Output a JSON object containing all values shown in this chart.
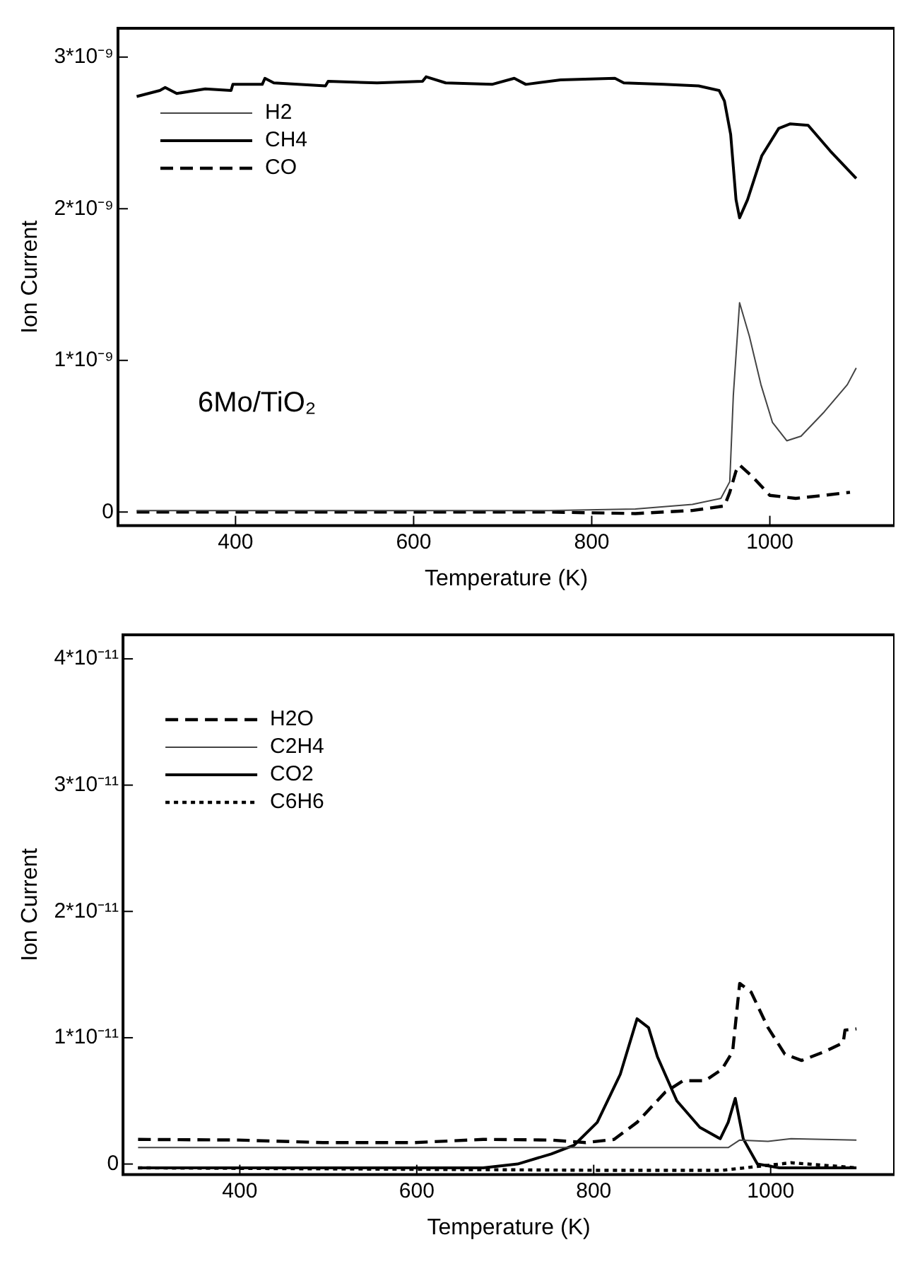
{
  "chart_data": [
    {
      "type": "line",
      "xlabel": "Temperature (K)",
      "ylabel": "Ion Current",
      "annotations": [
        "6Mo/TiO₂"
      ],
      "xlim": [
        268,
        1140
      ],
      "xticks": [
        400,
        600,
        800,
        1000
      ],
      "ylim": [
        -9e-11,
        3.19e-09
      ],
      "yticks": [
        {
          "value": 0,
          "label": "0"
        },
        {
          "value": 1e-09,
          "label": "1*10⁻⁹"
        },
        {
          "value": 2e-09,
          "label": "2*10⁻⁹"
        },
        {
          "value": 3e-09,
          "label": "3*10⁻⁹"
        }
      ],
      "grid": false,
      "legend": "top left",
      "marker": "none",
      "series": [
        {
          "name": "H2",
          "color": "#444444",
          "line_style": "solid",
          "x": [
            289,
            752,
            849,
            913,
            945,
            955,
            959,
            966,
            977,
            990,
            1003,
            1019,
            1035,
            1061,
            1087,
            1097
          ],
          "values": [
            1e-11,
            1e-11,
            2e-11,
            5e-11,
            9e-11,
            2e-10,
            7.7e-10,
            1.38e-09,
            1.16e-09,
            8.4e-10,
            5.9e-10,
            4.7e-10,
            5e-10,
            6.6e-10,
            8.4e-10,
            9.5e-10
          ]
        },
        {
          "name": "CH4",
          "color": "#000000",
          "line_style": "solid",
          "x": [
            289,
            315,
            321,
            334,
            366,
            395,
            397,
            430,
            433,
            443,
            501,
            504,
            559,
            610,
            614,
            636,
            688,
            713,
            726,
            765,
            826,
            836,
            881,
            920,
            943,
            949,
            956,
            962,
            966,
            975,
            991,
            1010,
            1023,
            1043,
            1068,
            1097
          ],
          "values": [
            2.74e-09,
            2.78e-09,
            2.8e-09,
            2.76e-09,
            2.79e-09,
            2.78e-09,
            2.82e-09,
            2.82e-09,
            2.86e-09,
            2.83e-09,
            2.81e-09,
            2.84e-09,
            2.83e-09,
            2.84e-09,
            2.87e-09,
            2.83e-09,
            2.82e-09,
            2.86e-09,
            2.82e-09,
            2.85e-09,
            2.86e-09,
            2.83e-09,
            2.82e-09,
            2.81e-09,
            2.78e-09,
            2.71e-09,
            2.49e-09,
            2.06e-09,
            1.94e-09,
            2.06e-09,
            2.35e-09,
            2.53e-09,
            2.56e-09,
            2.55e-09,
            2.38e-09,
            2.2e-09
          ]
        },
        {
          "name": "CO",
          "color": "#000000",
          "line_style": "dashed",
          "x": [
            289,
            752,
            849,
            913,
            949,
            955,
            962,
            966,
            981,
            1000,
            1029,
            1061,
            1090
          ],
          "values": [
            0,
            0,
            -1e-11,
            1e-11,
            4e-11,
            1.3e-10,
            2.7e-10,
            3.1e-10,
            2.3e-10,
            1.1e-10,
            9e-11,
            1.1e-10,
            1.3e-10
          ]
        }
      ]
    },
    {
      "type": "line",
      "xlabel": "Temperature (K)",
      "ylabel": "Ion Current",
      "xlim": [
        268,
        1140
      ],
      "xticks": [
        400,
        600,
        800,
        1000
      ],
      "ylim": [
        -8.4e-13,
        4.19e-11
      ],
      "yticks": [
        {
          "value": 0,
          "label": "0"
        },
        {
          "value": 1e-11,
          "label": "1*10⁻¹¹"
        },
        {
          "value": 2e-11,
          "label": "2*10⁻¹¹"
        },
        {
          "value": 3e-11,
          "label": "3*10⁻¹¹"
        },
        {
          "value": 4e-11,
          "label": "4*10⁻¹¹"
        }
      ],
      "grid": false,
      "legend": "top left",
      "marker": "none",
      "series": [
        {
          "name": "H2O",
          "color": "#000000",
          "line_style": "dashed",
          "x": [
            285,
            398,
            494,
            598,
            675,
            752,
            791,
            823,
            849,
            881,
            901,
            926,
            945,
            957,
            965,
            978,
            997,
            1016,
            1035,
            1061,
            1082,
            1084,
            1097
          ],
          "values": [
            1.95e-12,
            1.9e-12,
            1.7e-12,
            1.7e-12,
            1.95e-12,
            1.9e-12,
            1.7e-12,
            1.95e-12,
            3.3e-12,
            5.7e-12,
            6.6e-12,
            6.6e-12,
            7.5e-12,
            8.9e-12,
            1.43e-11,
            1.36e-11,
            1.08e-11,
            8.7e-12,
            8.2e-12,
            8.9e-12,
            9.6e-12,
            1.06e-11,
            1.07e-11
          ]
        },
        {
          "name": "C2H4",
          "color": "#444444",
          "line_style": "solid",
          "x": [
            285,
            659,
            881,
            952,
            965,
            997,
            1023,
            1097
          ],
          "values": [
            1.3e-12,
            1.3e-12,
            1.3e-12,
            1.3e-12,
            1.9e-12,
            1.8e-12,
            2e-12,
            1.9e-12
          ]
        },
        {
          "name": "CO2",
          "color": "#000000",
          "line_style": "solid",
          "x": [
            285,
            675,
            714,
            752,
            778,
            804,
            830,
            849,
            862,
            872,
            894,
            920,
            943,
            952,
            960,
            969,
            985,
            1010,
            1097
          ],
          "values": [
            -3e-13,
            -3e-13,
            0,
            8e-13,
            1.5e-12,
            3.3e-12,
            7.1e-12,
            1.15e-11,
            1.08e-11,
            8.5e-12,
            5e-12,
            2.9e-12,
            2e-12,
            3.3e-12,
            5.2e-12,
            2e-12,
            0,
            -3e-13,
            -3e-13
          ]
        },
        {
          "name": "C6H6",
          "color": "#000000",
          "line_style": "dotted",
          "x": [
            285,
            817,
            945,
            997,
            1023,
            1061,
            1097
          ],
          "values": [
            -3e-13,
            -5e-13,
            -5e-13,
            -1e-13,
            1e-13,
            -1e-13,
            -3e-13
          ]
        }
      ]
    }
  ]
}
